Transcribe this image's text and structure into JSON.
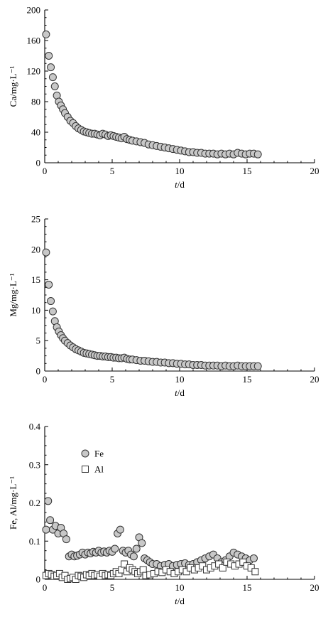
{
  "chart_data": [
    {
      "type": "scatter",
      "xlabel": "t/d",
      "ylabel": "Ca/mg·L⁻¹",
      "xlim": [
        0,
        20
      ],
      "ylim": [
        0,
        200
      ],
      "xticks": [
        0,
        5,
        10,
        15,
        20
      ],
      "yticks": [
        0,
        40,
        80,
        120,
        160,
        200
      ],
      "grid": false,
      "series": [
        {
          "marker": "circle",
          "color": "#c8c8c8",
          "x": [
            0.1,
            0.3,
            0.45,
            0.6,
            0.75,
            0.9,
            1.05,
            1.2,
            1.35,
            1.5,
            1.7,
            1.9,
            2.1,
            2.3,
            2.5,
            2.7,
            2.9,
            3.1,
            3.3,
            3.5,
            3.7,
            3.9,
            4.1,
            4.3,
            4.5,
            4.7,
            4.9,
            5.1,
            5.3,
            5.5,
            5.7,
            5.9,
            6.1,
            6.3,
            6.5,
            6.8,
            7.1,
            7.4,
            7.7,
            8.0,
            8.3,
            8.6,
            8.9,
            9.2,
            9.5,
            9.8,
            10.1,
            10.4,
            10.7,
            11.0,
            11.3,
            11.6,
            11.9,
            12.2,
            12.5,
            12.8,
            13.1,
            13.4,
            13.7,
            14.0,
            14.3,
            14.6,
            14.9,
            15.2,
            15.5,
            15.8
          ],
          "y": [
            168,
            140,
            125,
            112,
            100,
            88,
            80,
            75,
            70,
            65,
            60,
            55,
            52,
            48,
            45,
            43,
            41,
            40,
            39,
            38,
            38,
            37,
            36,
            38,
            37,
            35,
            36,
            35,
            34,
            33,
            32,
            34,
            31,
            30,
            29,
            28,
            27,
            26,
            24,
            23,
            22,
            21,
            20,
            19,
            18,
            17,
            16,
            15,
            14,
            14,
            13,
            13,
            12,
            12,
            12,
            11,
            12,
            11,
            12,
            11,
            13,
            12,
            11,
            12,
            12,
            11
          ]
        }
      ]
    },
    {
      "type": "scatter",
      "xlabel": "t/d",
      "ylabel": "Mg/mg·L⁻¹",
      "xlim": [
        0,
        20
      ],
      "ylim": [
        0,
        25
      ],
      "xticks": [
        0,
        5,
        10,
        15,
        20
      ],
      "yticks": [
        0,
        5,
        10,
        15,
        20,
        25
      ],
      "grid": false,
      "series": [
        {
          "marker": "circle",
          "color": "#c8c8c8",
          "x": [
            0.1,
            0.3,
            0.45,
            0.6,
            0.75,
            0.9,
            1.05,
            1.2,
            1.35,
            1.5,
            1.7,
            1.9,
            2.1,
            2.3,
            2.5,
            2.7,
            2.9,
            3.1,
            3.3,
            3.5,
            3.7,
            3.9,
            4.1,
            4.3,
            4.5,
            4.7,
            4.9,
            5.1,
            5.3,
            5.5,
            5.7,
            5.9,
            6.1,
            6.3,
            6.5,
            6.8,
            7.1,
            7.4,
            7.7,
            8.0,
            8.3,
            8.6,
            8.9,
            9.2,
            9.5,
            9.8,
            10.1,
            10.4,
            10.7,
            11.0,
            11.3,
            11.6,
            11.9,
            12.2,
            12.5,
            12.8,
            13.1,
            13.4,
            13.7,
            14.0,
            14.3,
            14.6,
            14.9,
            15.2,
            15.5,
            15.8
          ],
          "y": [
            19.5,
            14.2,
            11.5,
            9.8,
            8.2,
            7.2,
            6.5,
            5.9,
            5.4,
            5.0,
            4.6,
            4.2,
            3.9,
            3.6,
            3.4,
            3.2,
            3.0,
            2.9,
            2.8,
            2.7,
            2.6,
            2.5,
            2.5,
            2.4,
            2.4,
            2.3,
            2.3,
            2.2,
            2.2,
            2.1,
            2.1,
            2.2,
            2.0,
            1.9,
            1.9,
            1.8,
            1.7,
            1.7,
            1.6,
            1.5,
            1.5,
            1.4,
            1.4,
            1.3,
            1.3,
            1.2,
            1.2,
            1.1,
            1.1,
            1.0,
            1.0,
            1.0,
            0.9,
            0.9,
            0.9,
            0.9,
            0.8,
            0.9,
            0.8,
            0.8,
            0.9,
            0.8,
            0.8,
            0.8,
            0.8,
            0.8
          ]
        }
      ]
    },
    {
      "type": "scatter",
      "xlabel": "t/d",
      "ylabel": "Fe, Al/mg·L⁻¹",
      "xlim": [
        0,
        20
      ],
      "ylim": [
        0,
        0.4
      ],
      "xticks": [
        0,
        5,
        10,
        15,
        20
      ],
      "yticks": [
        0,
        0.1,
        0.2,
        0.3,
        0.4
      ],
      "ytick_labels": [
        "0",
        "0.1",
        "0.2",
        "0.3",
        "0.4"
      ],
      "grid": false,
      "legend": {
        "position": "top-left"
      },
      "series": [
        {
          "name": "Fe",
          "marker": "circle",
          "color": "#c8c8c8",
          "x": [
            0.1,
            0.25,
            0.4,
            0.6,
            0.8,
            1.0,
            1.2,
            1.4,
            1.6,
            1.8,
            2.0,
            2.2,
            2.4,
            2.6,
            2.8,
            3.0,
            3.2,
            3.4,
            3.6,
            3.8,
            4.0,
            4.2,
            4.4,
            4.6,
            4.8,
            5.0,
            5.2,
            5.4,
            5.6,
            5.8,
            6.0,
            6.2,
            6.4,
            6.6,
            6.8,
            7.0,
            7.2,
            7.4,
            7.6,
            7.8,
            8.0,
            8.3,
            8.6,
            8.9,
            9.2,
            9.5,
            9.8,
            10.1,
            10.4,
            10.7,
            11.0,
            11.3,
            11.6,
            11.9,
            12.2,
            12.5,
            12.8,
            13.1,
            13.4,
            13.7,
            14.0,
            14.3,
            14.6,
            14.9,
            15.2,
            15.5
          ],
          "y": [
            0.13,
            0.205,
            0.155,
            0.13,
            0.14,
            0.12,
            0.135,
            0.12,
            0.105,
            0.06,
            0.065,
            0.06,
            0.062,
            0.065,
            0.07,
            0.065,
            0.07,
            0.068,
            0.072,
            0.07,
            0.075,
            0.07,
            0.073,
            0.07,
            0.075,
            0.072,
            0.08,
            0.12,
            0.13,
            0.075,
            0.07,
            0.075,
            0.065,
            0.06,
            0.08,
            0.11,
            0.095,
            0.055,
            0.05,
            0.045,
            0.04,
            0.04,
            0.035,
            0.038,
            0.04,
            0.035,
            0.038,
            0.04,
            0.042,
            0.038,
            0.04,
            0.045,
            0.05,
            0.055,
            0.06,
            0.065,
            0.055,
            0.045,
            0.05,
            0.06,
            0.07,
            0.065,
            0.06,
            0.055,
            0.05,
            0.055
          ]
        },
        {
          "name": "Al",
          "marker": "square",
          "color": "#ffffff",
          "x": [
            0.1,
            0.3,
            0.5,
            0.7,
            0.9,
            1.1,
            1.3,
            1.5,
            1.7,
            1.9,
            2.1,
            2.3,
            2.5,
            2.7,
            2.9,
            3.1,
            3.3,
            3.5,
            3.7,
            3.9,
            4.1,
            4.3,
            4.5,
            4.7,
            4.9,
            5.1,
            5.3,
            5.5,
            5.7,
            5.9,
            6.1,
            6.3,
            6.5,
            6.7,
            6.9,
            7.1,
            7.3,
            7.5,
            7.8,
            8.1,
            8.4,
            8.7,
            9.0,
            9.3,
            9.6,
            9.9,
            10.2,
            10.5,
            10.8,
            11.1,
            11.4,
            11.7,
            12.0,
            12.3,
            12.6,
            12.9,
            13.2,
            13.5,
            13.8,
            14.1,
            14.4,
            14.7,
            15.0,
            15.3,
            15.6
          ],
          "y": [
            0.01,
            0.015,
            0.012,
            0.008,
            0.01,
            0.015,
            0.005,
            0.01,
            0.0,
            0.002,
            0.005,
            0.0,
            0.01,
            0.008,
            0.005,
            0.012,
            0.01,
            0.015,
            0.01,
            0.012,
            0.008,
            0.015,
            0.01,
            0.012,
            0.01,
            0.015,
            0.02,
            0.015,
            0.025,
            0.04,
            0.02,
            0.03,
            0.025,
            0.02,
            0.015,
            0.02,
            0.025,
            0.01,
            0.012,
            0.015,
            0.02,
            0.018,
            0.025,
            0.02,
            0.015,
            0.02,
            0.025,
            0.02,
            0.03,
            0.025,
            0.03,
            0.035,
            0.025,
            0.03,
            0.035,
            0.04,
            0.03,
            0.045,
            0.04,
            0.035,
            0.04,
            0.045,
            0.035,
            0.03,
            0.02
          ]
        }
      ]
    }
  ]
}
